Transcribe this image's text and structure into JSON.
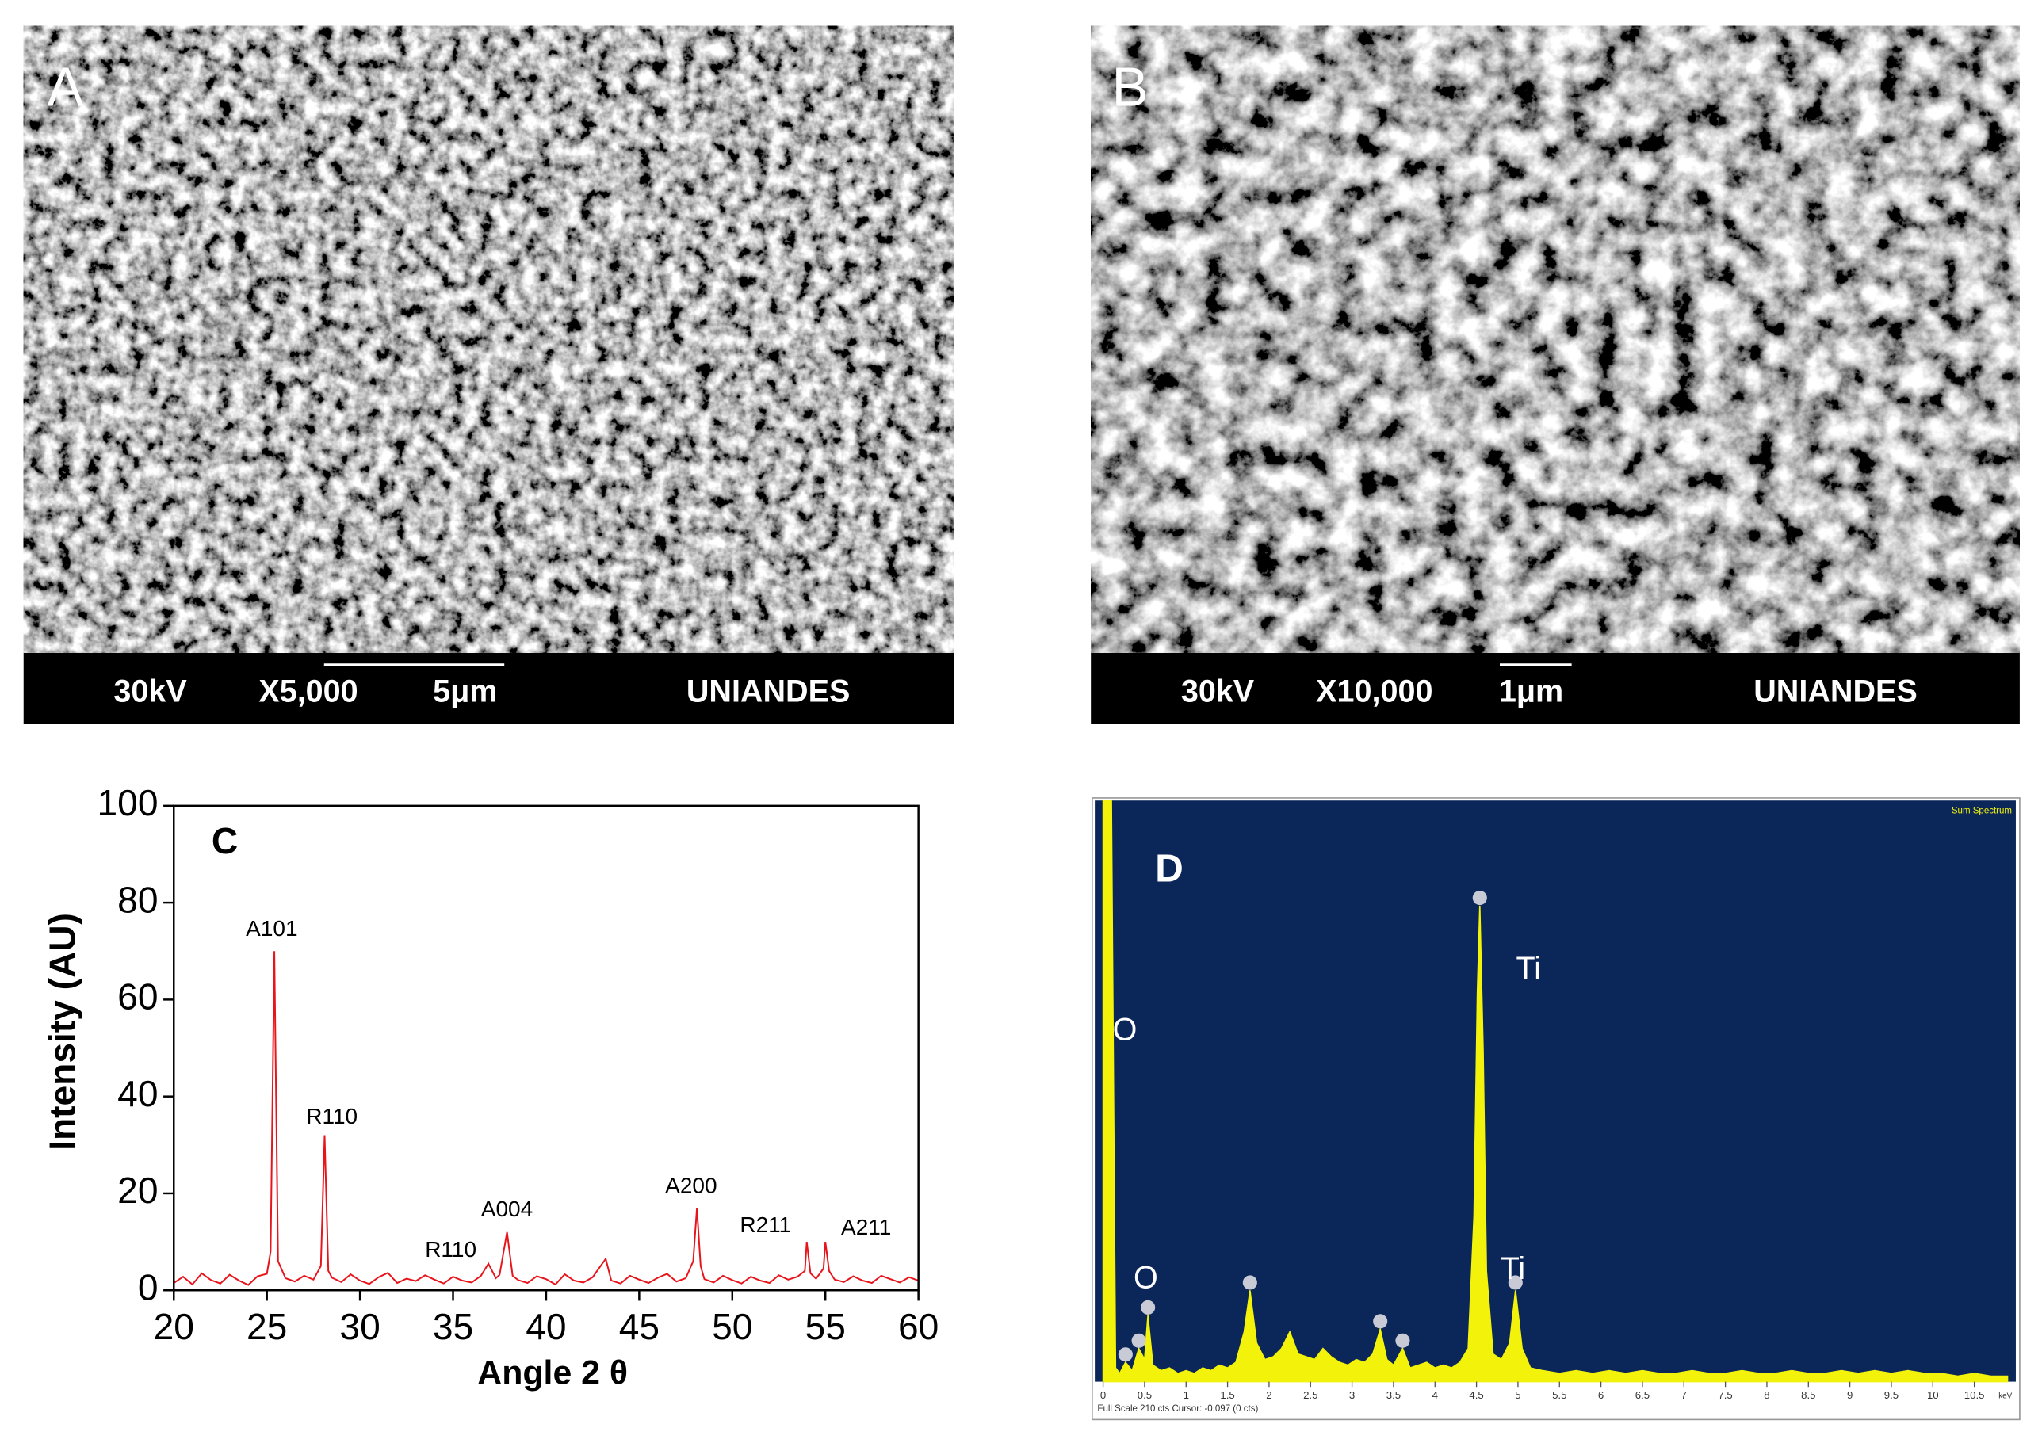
{
  "sem_panels": [
    {
      "label": "A",
      "voltage": "30kV",
      "magnification": "X5,000",
      "scale": "5μm",
      "institution": "UNIANDES"
    },
    {
      "label": "B",
      "voltage": "30kV",
      "magnification": "X10,000",
      "scale": "1μm",
      "institution": "UNIANDES"
    }
  ],
  "chart_data": [
    {
      "type": "line",
      "panel_label": "C",
      "x_label": "Angle 2 θ",
      "y_label": "Intensity (AU)",
      "color": "#e8141b",
      "xlim": [
        20,
        60
      ],
      "ylim": [
        0,
        100
      ],
      "xticks": [
        20,
        25,
        30,
        35,
        40,
        45,
        50,
        55,
        60
      ],
      "yticks": [
        0,
        20,
        40,
        60,
        80,
        100
      ],
      "x": [
        20,
        20.5,
        21,
        21.5,
        22,
        22.5,
        23,
        23.5,
        24,
        24.5,
        25,
        25.2,
        25.4,
        25.6,
        26,
        26.5,
        27,
        27.5,
        27.9,
        28.1,
        28.3,
        28.5,
        29,
        29.5,
        30,
        30.5,
        31,
        31.5,
        32,
        32.5,
        33,
        33.5,
        34,
        34.5,
        35,
        35.5,
        36,
        36.5,
        36.9,
        37.3,
        37.5,
        37.9,
        38.2,
        38.5,
        39,
        39.5,
        40,
        40.5,
        41,
        41.5,
        42,
        42.5,
        43.2,
        43.5,
        44,
        44.5,
        45,
        45.5,
        46,
        46.5,
        47,
        47.5,
        47.9,
        48.1,
        48.3,
        48.5,
        49,
        49.5,
        50,
        50.5,
        51,
        51.5,
        52,
        52.5,
        53,
        53.5,
        53.9,
        54,
        54.2,
        54.5,
        54.9,
        55,
        55.2,
        55.5,
        56,
        56.5,
        57,
        57.5,
        58,
        58.5,
        59,
        59.5,
        60
      ],
      "values": [
        1.5,
        2.8,
        1.2,
        3.5,
        2.1,
        1.4,
        3.2,
        2,
        1.1,
        2.9,
        3.4,
        8,
        70,
        6,
        2.5,
        1.8,
        3,
        2.2,
        5,
        32,
        4,
        2.6,
        1.7,
        3.3,
        2,
        1.3,
        2.7,
        3.6,
        1.5,
        2.4,
        1.9,
        3.1,
        2.2,
        1.4,
        2.8,
        2,
        1.6,
        3,
        5.5,
        2.5,
        3.2,
        12,
        3,
        2.1,
        1.5,
        2.9,
        2.3,
        1.2,
        3.3,
        2,
        1.6,
        2.7,
        6.5,
        2,
        1.4,
        3,
        2.2,
        1.5,
        2.6,
        3.4,
        1.8,
        2.5,
        6,
        17,
        5,
        2.3,
        1.6,
        3,
        2.1,
        1.4,
        2.8,
        2,
        1.5,
        3.1,
        2.2,
        2.8,
        4,
        10,
        3.5,
        2.4,
        4.5,
        10,
        4,
        2.2,
        1.7,
        2.9,
        2,
        1.5,
        3,
        2.3,
        1.6,
        2.7,
        2
      ],
      "annotations": [
        "A101",
        "R110",
        "R110",
        "A004",
        "A200",
        "R211",
        "A211"
      ]
    },
    {
      "type": "area",
      "panel_label": "D",
      "title": "Sum Spectrum",
      "x_unit": "keV",
      "footer": "Full Scale 210 cts Cursor: -0.097 (0 cts)",
      "color": "#f2f20a",
      "background": "#0b2659",
      "marker_color": "#c8cad6",
      "xlim": [
        -0.1,
        11
      ],
      "ylim": [
        0,
        210
      ],
      "xticks": [
        0,
        0.5,
        1,
        1.5,
        2,
        2.5,
        3,
        3.5,
        4,
        4.5,
        5,
        5.5,
        6,
        6.5,
        7,
        7.5,
        8,
        8.5,
        9,
        9.5,
        10,
        10.5
      ],
      "x": [
        0,
        0.1,
        0.15,
        0.2,
        0.27,
        0.35,
        0.43,
        0.5,
        0.54,
        0.6,
        0.7,
        0.8,
        0.9,
        1,
        1.1,
        1.2,
        1.3,
        1.4,
        1.5,
        1.6,
        1.7,
        1.77,
        1.85,
        1.95,
        2.05,
        2.15,
        2.25,
        2.35,
        2.45,
        2.55,
        2.65,
        2.75,
        2.85,
        2.95,
        3.05,
        3.15,
        3.25,
        3.34,
        3.42,
        3.5,
        3.61,
        3.7,
        3.8,
        3.9,
        4,
        4.1,
        4.2,
        4.3,
        4.4,
        4.47,
        4.51,
        4.54,
        4.58,
        4.62,
        4.7,
        4.8,
        4.9,
        4.97,
        5.05,
        5.15,
        5.3,
        5.5,
        5.7,
        5.9,
        6.1,
        6.3,
        6.5,
        6.7,
        6.9,
        7.1,
        7.3,
        7.5,
        7.7,
        7.9,
        8.1,
        8.3,
        8.5,
        8.7,
        8.9,
        9.1,
        9.3,
        9.5,
        9.7,
        9.9,
        10.1,
        10.3,
        10.5,
        10.7,
        10.9
      ],
      "values": [
        210,
        210,
        5,
        3,
        7,
        4,
        12,
        8,
        24,
        6,
        4,
        5,
        3,
        4,
        3,
        5,
        4,
        6,
        5,
        7,
        18,
        33,
        14,
        8,
        9,
        12,
        18,
        10,
        9,
        8,
        12,
        9,
        7,
        6,
        8,
        7,
        10,
        19,
        8,
        6,
        12,
        5,
        6,
        7,
        5,
        6,
        5,
        7,
        12,
        60,
        140,
        172,
        120,
        40,
        10,
        8,
        14,
        33,
        12,
        5,
        4,
        3,
        4,
        3,
        4,
        3,
        4,
        3,
        3,
        4,
        3,
        3,
        4,
        3,
        3,
        4,
        3,
        3,
        4,
        3,
        4,
        3,
        4,
        3,
        3,
        2,
        3,
        2,
        2
      ],
      "markers": {
        "x": [
          0.27,
          0.43,
          0.54,
          1.77,
          3.34,
          3.61,
          4.54,
          4.97
        ],
        "y": [
          7,
          12,
          24,
          33,
          19,
          12,
          172,
          33
        ]
      },
      "annotations": [
        "O",
        "Ti",
        "O",
        "Ti"
      ]
    }
  ]
}
